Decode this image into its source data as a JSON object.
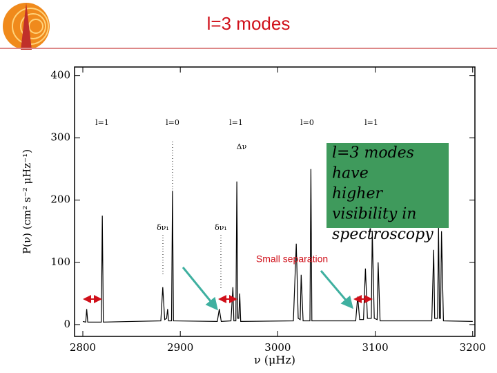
{
  "chart_data": {
    "type": "line",
    "title": "l=3 modes",
    "x_label": "ν (μHz)",
    "y_label": "P(ν) (cm² s⁻² μHz⁻¹)",
    "mode_labels": [
      "l=1",
      "l=0",
      "l=1",
      "l=0",
      "l=1"
    ],
    "spacing_labels": [
      "Δν",
      "δν₁",
      "δν₁"
    ],
    "callout": [
      "l=3 modes",
      "have",
      "higher",
      "visibility in",
      "spectroscopy"
    ],
    "arrow_label": "Small separation",
    "x": [
      2800,
      2803,
      2804,
      2805,
      2819,
      2820,
      2821,
      2880,
      2882,
      2884,
      2886,
      2887,
      2888,
      2891,
      2892,
      2893,
      2938,
      2940,
      2942,
      2952,
      2954,
      2955,
      2957,
      2958,
      2959,
      2960,
      2961,
      2962,
      3016,
      3019,
      3021,
      3023,
      3024,
      3026,
      3033,
      3034,
      3035,
      3080,
      3082,
      3084,
      3088,
      3090,
      3092,
      3096,
      3097,
      3099,
      3102,
      3103,
      3105,
      3158,
      3160,
      3161,
      3164,
      3165,
      3166,
      3167,
      3168,
      3170,
      3200
    ],
    "values": [
      5,
      4,
      25,
      4,
      4,
      175,
      4,
      6,
      60,
      8,
      10,
      25,
      6,
      6,
      215,
      6,
      5,
      25,
      5,
      6,
      60,
      6,
      6,
      230,
      10,
      10,
      50,
      5,
      6,
      130,
      10,
      8,
      80,
      6,
      6,
      250,
      6,
      6,
      45,
      8,
      8,
      90,
      10,
      10,
      150,
      10,
      8,
      100,
      6,
      6,
      120,
      10,
      10,
      160,
      10,
      10,
      150,
      6,
      5
    ],
    "color": "#000000",
    "xlim": [
      2791.5,
      3202.3
    ],
    "xticks": [
      2800,
      2900,
      3000,
      3100,
      3200
    ],
    "ylim": [
      -19,
      414
    ],
    "yticks": [
      0,
      100,
      200,
      300,
      400
    ]
  }
}
